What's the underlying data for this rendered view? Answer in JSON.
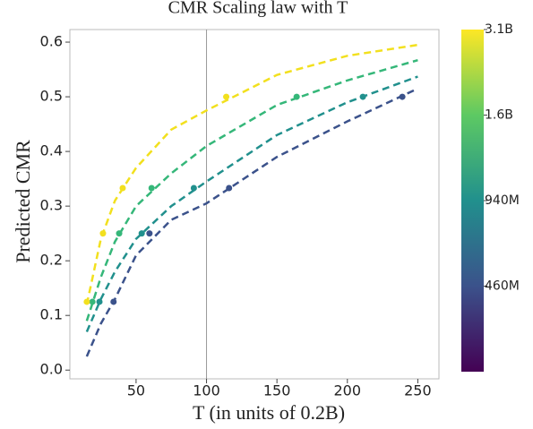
{
  "chart_data": {
    "type": "line",
    "title": "CMR Scaling law with T",
    "xlabel": "T (in units of 0.2B)",
    "ylabel": "Predicted CMR",
    "xlim": [
      3,
      265
    ],
    "xticks": [
      50,
      100,
      150,
      200,
      250
    ],
    "ylim": [
      -0.016,
      0.623
    ],
    "yticks": [
      {
        "value": 0,
        "label": "0.0"
      },
      0.1,
      0.2,
      0.3,
      0.4,
      0.5,
      0.6
    ],
    "vline": 100,
    "fit_x": [
      15,
      25,
      35,
      50,
      75,
      100,
      150,
      200,
      250
    ],
    "series": [
      {
        "color": "#3b528b",
        "x": [
          34,
          59.5,
          116,
          239
        ],
        "values": [
          0.125,
          0.25,
          0.333,
          0.5
        ],
        "fit_values": [
          0.025,
          0.085,
          0.13,
          0.21,
          0.275,
          0.305,
          0.39,
          0.455,
          0.515
        ]
      },
      {
        "color": "#21908d",
        "x": [
          24,
          54,
          91,
          211
        ],
        "values": [
          0.125,
          0.25,
          0.333,
          0.5
        ],
        "fit_values": [
          0.07,
          0.13,
          0.18,
          0.24,
          0.3,
          0.345,
          0.43,
          0.49,
          0.537
        ]
      },
      {
        "color": "#35b779",
        "x": [
          19,
          38,
          61,
          164
        ],
        "values": [
          0.125,
          0.25,
          0.333,
          0.5
        ],
        "fit_values": [
          0.09,
          0.17,
          0.235,
          0.3,
          0.36,
          0.41,
          0.485,
          0.53,
          0.567
        ]
      },
      {
        "color": "#f2e01e",
        "x": [
          15,
          26.5,
          40.5,
          114
        ],
        "values": [
          0.125,
          0.25,
          0.333,
          0.5
        ],
        "fit_values": [
          0.12,
          0.24,
          0.31,
          0.37,
          0.44,
          0.475,
          0.54,
          0.575,
          0.595
        ]
      }
    ],
    "colorbar_ticks": [
      "460M",
      "940M",
      "1.6B",
      "3.1B"
    ]
  }
}
